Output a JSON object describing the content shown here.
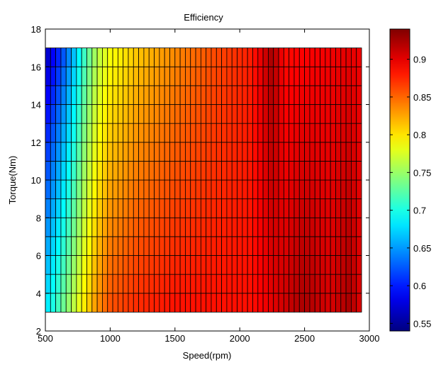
{
  "chart_data": {
    "type": "heatmap",
    "title": "Efficiency",
    "xlabel": "Speed(rpm)",
    "ylabel": "Torque(Nm)",
    "xlim": [
      500,
      3000
    ],
    "ylim": [
      2,
      18
    ],
    "xticks": [
      500,
      1000,
      1500,
      2000,
      2500,
      3000
    ],
    "yticks": [
      2,
      4,
      6,
      8,
      10,
      12,
      14,
      16,
      18
    ],
    "colorbar": {
      "range": [
        0.54,
        0.94
      ],
      "ticks": [
        0.55,
        0.6,
        0.65,
        0.7,
        0.75,
        0.8,
        0.85,
        0.9
      ],
      "colormap": "jet"
    },
    "grid": {
      "speed_start": 500,
      "speed_end": 2940,
      "speed_step": 40,
      "torque_start": 3,
      "torque_end": 17,
      "torque_step": 1
    },
    "efficiency_by_speed": [
      {
        "speed": 500,
        "low_torque": 0.68,
        "high_torque": 0.56
      },
      {
        "speed": 600,
        "low_torque": 0.72,
        "high_torque": 0.6
      },
      {
        "speed": 700,
        "low_torque": 0.76,
        "high_torque": 0.65
      },
      {
        "speed": 800,
        "low_torque": 0.8,
        "high_torque": 0.71
      },
      {
        "speed": 900,
        "low_torque": 0.835,
        "high_torque": 0.76
      },
      {
        "speed": 1000,
        "low_torque": 0.86,
        "high_torque": 0.785
      },
      {
        "speed": 1200,
        "low_torque": 0.875,
        "high_torque": 0.81
      },
      {
        "speed": 1500,
        "low_torque": 0.885,
        "high_torque": 0.835
      },
      {
        "speed": 1800,
        "low_torque": 0.885,
        "high_torque": 0.86
      },
      {
        "speed": 2100,
        "low_torque": 0.885,
        "high_torque": 0.88
      },
      {
        "speed": 2250,
        "low_torque": 0.9,
        "high_torque": 0.925
      },
      {
        "speed": 2350,
        "low_torque": 0.91,
        "high_torque": 0.885
      },
      {
        "speed": 2500,
        "low_torque": 0.925,
        "high_torque": 0.89
      },
      {
        "speed": 2700,
        "low_torque": 0.905,
        "high_torque": 0.895
      },
      {
        "speed": 2850,
        "low_torque": 0.925,
        "high_torque": 0.9
      },
      {
        "speed": 2940,
        "low_torque": 0.9,
        "high_torque": 0.895
      }
    ]
  }
}
